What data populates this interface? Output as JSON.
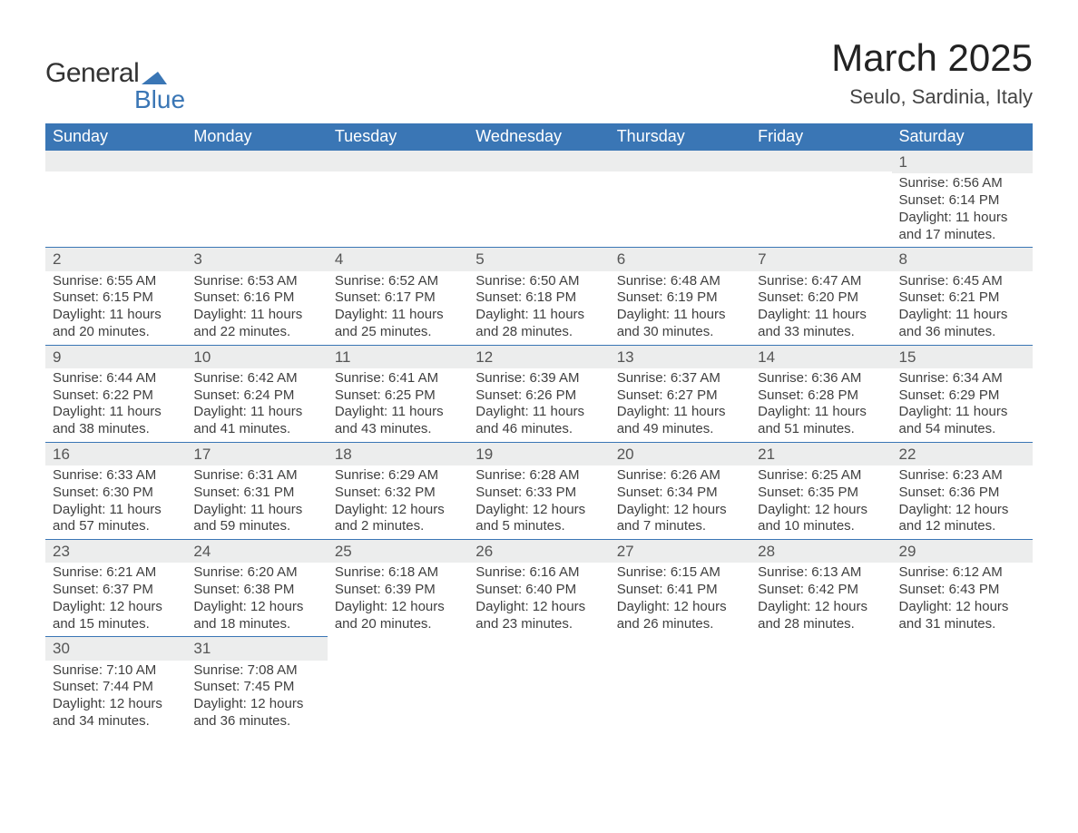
{
  "brand": {
    "line1": "General",
    "line2": "Blue",
    "mark_color": "#3a76b5"
  },
  "title": "March 2025",
  "location": "Seulo, Sardinia, Italy",
  "colors": {
    "header_bg": "#3a76b5",
    "header_text": "#ffffff",
    "daynum_bg": "#eceded",
    "text": "#3a3a3a",
    "border": "#3a76b5",
    "background": "#ffffff"
  },
  "typography": {
    "body_fontsize": 15,
    "header_fontsize": 18,
    "title_fontsize": 42,
    "location_fontsize": 22
  },
  "layout": {
    "columns": 7,
    "rows": 6,
    "cell_w_ratio": "equal"
  },
  "weekdays": [
    "Sunday",
    "Monday",
    "Tuesday",
    "Wednesday",
    "Thursday",
    "Friday",
    "Saturday"
  ],
  "weeks": [
    [
      {
        "day": ""
      },
      {
        "day": ""
      },
      {
        "day": ""
      },
      {
        "day": ""
      },
      {
        "day": ""
      },
      {
        "day": ""
      },
      {
        "day": "1",
        "sunrise": "Sunrise: 6:56 AM",
        "sunset": "Sunset: 6:14 PM",
        "daylight1": "Daylight: 11 hours",
        "daylight2": "and 17 minutes."
      }
    ],
    [
      {
        "day": "2",
        "sunrise": "Sunrise: 6:55 AM",
        "sunset": "Sunset: 6:15 PM",
        "daylight1": "Daylight: 11 hours",
        "daylight2": "and 20 minutes."
      },
      {
        "day": "3",
        "sunrise": "Sunrise: 6:53 AM",
        "sunset": "Sunset: 6:16 PM",
        "daylight1": "Daylight: 11 hours",
        "daylight2": "and 22 minutes."
      },
      {
        "day": "4",
        "sunrise": "Sunrise: 6:52 AM",
        "sunset": "Sunset: 6:17 PM",
        "daylight1": "Daylight: 11 hours",
        "daylight2": "and 25 minutes."
      },
      {
        "day": "5",
        "sunrise": "Sunrise: 6:50 AM",
        "sunset": "Sunset: 6:18 PM",
        "daylight1": "Daylight: 11 hours",
        "daylight2": "and 28 minutes."
      },
      {
        "day": "6",
        "sunrise": "Sunrise: 6:48 AM",
        "sunset": "Sunset: 6:19 PM",
        "daylight1": "Daylight: 11 hours",
        "daylight2": "and 30 minutes."
      },
      {
        "day": "7",
        "sunrise": "Sunrise: 6:47 AM",
        "sunset": "Sunset: 6:20 PM",
        "daylight1": "Daylight: 11 hours",
        "daylight2": "and 33 minutes."
      },
      {
        "day": "8",
        "sunrise": "Sunrise: 6:45 AM",
        "sunset": "Sunset: 6:21 PM",
        "daylight1": "Daylight: 11 hours",
        "daylight2": "and 36 minutes."
      }
    ],
    [
      {
        "day": "9",
        "sunrise": "Sunrise: 6:44 AM",
        "sunset": "Sunset: 6:22 PM",
        "daylight1": "Daylight: 11 hours",
        "daylight2": "and 38 minutes."
      },
      {
        "day": "10",
        "sunrise": "Sunrise: 6:42 AM",
        "sunset": "Sunset: 6:24 PM",
        "daylight1": "Daylight: 11 hours",
        "daylight2": "and 41 minutes."
      },
      {
        "day": "11",
        "sunrise": "Sunrise: 6:41 AM",
        "sunset": "Sunset: 6:25 PM",
        "daylight1": "Daylight: 11 hours",
        "daylight2": "and 43 minutes."
      },
      {
        "day": "12",
        "sunrise": "Sunrise: 6:39 AM",
        "sunset": "Sunset: 6:26 PM",
        "daylight1": "Daylight: 11 hours",
        "daylight2": "and 46 minutes."
      },
      {
        "day": "13",
        "sunrise": "Sunrise: 6:37 AM",
        "sunset": "Sunset: 6:27 PM",
        "daylight1": "Daylight: 11 hours",
        "daylight2": "and 49 minutes."
      },
      {
        "day": "14",
        "sunrise": "Sunrise: 6:36 AM",
        "sunset": "Sunset: 6:28 PM",
        "daylight1": "Daylight: 11 hours",
        "daylight2": "and 51 minutes."
      },
      {
        "day": "15",
        "sunrise": "Sunrise: 6:34 AM",
        "sunset": "Sunset: 6:29 PM",
        "daylight1": "Daylight: 11 hours",
        "daylight2": "and 54 minutes."
      }
    ],
    [
      {
        "day": "16",
        "sunrise": "Sunrise: 6:33 AM",
        "sunset": "Sunset: 6:30 PM",
        "daylight1": "Daylight: 11 hours",
        "daylight2": "and 57 minutes."
      },
      {
        "day": "17",
        "sunrise": "Sunrise: 6:31 AM",
        "sunset": "Sunset: 6:31 PM",
        "daylight1": "Daylight: 11 hours",
        "daylight2": "and 59 minutes."
      },
      {
        "day": "18",
        "sunrise": "Sunrise: 6:29 AM",
        "sunset": "Sunset: 6:32 PM",
        "daylight1": "Daylight: 12 hours",
        "daylight2": "and 2 minutes."
      },
      {
        "day": "19",
        "sunrise": "Sunrise: 6:28 AM",
        "sunset": "Sunset: 6:33 PM",
        "daylight1": "Daylight: 12 hours",
        "daylight2": "and 5 minutes."
      },
      {
        "day": "20",
        "sunrise": "Sunrise: 6:26 AM",
        "sunset": "Sunset: 6:34 PM",
        "daylight1": "Daylight: 12 hours",
        "daylight2": "and 7 minutes."
      },
      {
        "day": "21",
        "sunrise": "Sunrise: 6:25 AM",
        "sunset": "Sunset: 6:35 PM",
        "daylight1": "Daylight: 12 hours",
        "daylight2": "and 10 minutes."
      },
      {
        "day": "22",
        "sunrise": "Sunrise: 6:23 AM",
        "sunset": "Sunset: 6:36 PM",
        "daylight1": "Daylight: 12 hours",
        "daylight2": "and 12 minutes."
      }
    ],
    [
      {
        "day": "23",
        "sunrise": "Sunrise: 6:21 AM",
        "sunset": "Sunset: 6:37 PM",
        "daylight1": "Daylight: 12 hours",
        "daylight2": "and 15 minutes."
      },
      {
        "day": "24",
        "sunrise": "Sunrise: 6:20 AM",
        "sunset": "Sunset: 6:38 PM",
        "daylight1": "Daylight: 12 hours",
        "daylight2": "and 18 minutes."
      },
      {
        "day": "25",
        "sunrise": "Sunrise: 6:18 AM",
        "sunset": "Sunset: 6:39 PM",
        "daylight1": "Daylight: 12 hours",
        "daylight2": "and 20 minutes."
      },
      {
        "day": "26",
        "sunrise": "Sunrise: 6:16 AM",
        "sunset": "Sunset: 6:40 PM",
        "daylight1": "Daylight: 12 hours",
        "daylight2": "and 23 minutes."
      },
      {
        "day": "27",
        "sunrise": "Sunrise: 6:15 AM",
        "sunset": "Sunset: 6:41 PM",
        "daylight1": "Daylight: 12 hours",
        "daylight2": "and 26 minutes."
      },
      {
        "day": "28",
        "sunrise": "Sunrise: 6:13 AM",
        "sunset": "Sunset: 6:42 PM",
        "daylight1": "Daylight: 12 hours",
        "daylight2": "and 28 minutes."
      },
      {
        "day": "29",
        "sunrise": "Sunrise: 6:12 AM",
        "sunset": "Sunset: 6:43 PM",
        "daylight1": "Daylight: 12 hours",
        "daylight2": "and 31 minutes."
      }
    ],
    [
      {
        "day": "30",
        "sunrise": "Sunrise: 7:10 AM",
        "sunset": "Sunset: 7:44 PM",
        "daylight1": "Daylight: 12 hours",
        "daylight2": "and 34 minutes."
      },
      {
        "day": "31",
        "sunrise": "Sunrise: 7:08 AM",
        "sunset": "Sunset: 7:45 PM",
        "daylight1": "Daylight: 12 hours",
        "daylight2": "and 36 minutes."
      },
      {
        "day": ""
      },
      {
        "day": ""
      },
      {
        "day": ""
      },
      {
        "day": ""
      },
      {
        "day": ""
      }
    ]
  ]
}
